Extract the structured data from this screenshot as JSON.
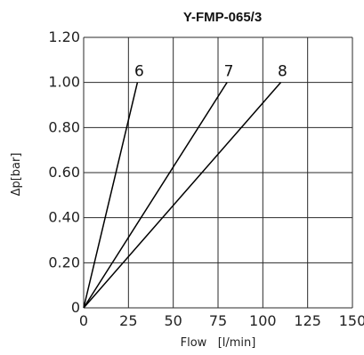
{
  "chart_data": {
    "type": "line",
    "title": "Y-FMP-065/3",
    "xlabel": "Flow   [l/min]",
    "ylabel": "Δp[bar]",
    "xlim": [
      0,
      150
    ],
    "ylim": [
      0,
      1.2
    ],
    "x_ticks": [
      "0",
      "25",
      "50",
      "75",
      "100",
      "125",
      "150"
    ],
    "y_ticks": [
      "0",
      "0.20",
      "0.40",
      "0.60",
      "0.80",
      "1.00",
      "1.20"
    ],
    "grid": true,
    "series": [
      {
        "name": "6",
        "x": [
          0,
          30
        ],
        "y": [
          0,
          1.0
        ]
      },
      {
        "name": "7",
        "x": [
          0,
          80
        ],
        "y": [
          0,
          1.0
        ]
      },
      {
        "name": "8",
        "x": [
          0,
          110
        ],
        "y": [
          0,
          1.0
        ]
      }
    ]
  }
}
